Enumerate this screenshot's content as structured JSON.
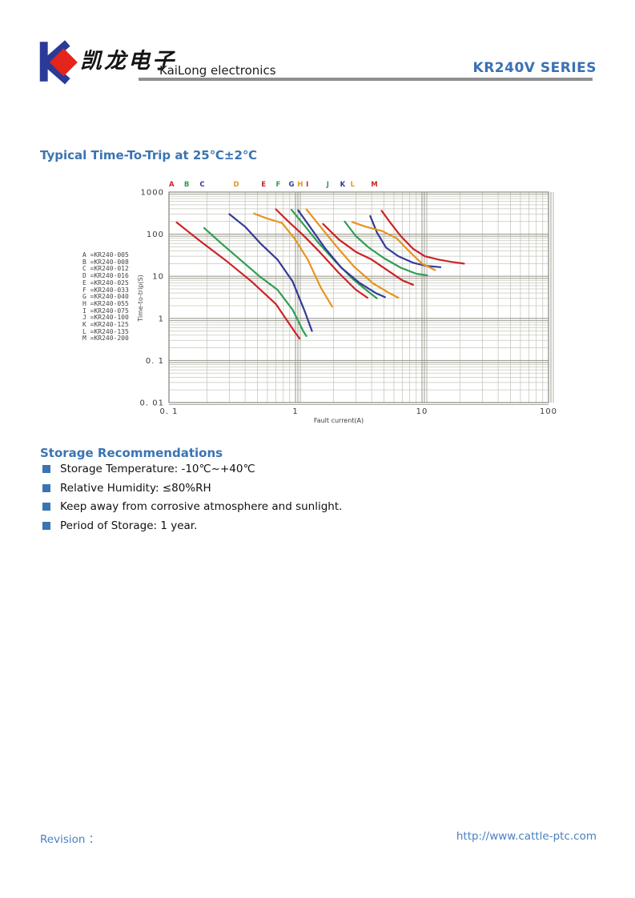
{
  "header": {
    "logo_chinese": "凯龙电子",
    "logo_english": "KaiLong electronics",
    "series": "KR240V SERIES"
  },
  "section_title": "Typical Time-To-Trip at 25℃±2℃",
  "chart_data": {
    "type": "line",
    "title": "Typical Time-To-Trip at 25℃±2℃",
    "xlabel": "Fault current(A)",
    "ylabel": "Time-to-trip(S)",
    "x_scale": "log",
    "y_scale": "log",
    "xlim": [
      0.1,
      100
    ],
    "ylim": [
      0.01,
      1000
    ],
    "grid": true,
    "x_ticks": [
      {
        "label": "0. 1",
        "value": 0.1
      },
      {
        "label": "1",
        "value": 1
      },
      {
        "label": "10",
        "value": 10
      },
      {
        "label": "100",
        "value": 100
      }
    ],
    "y_ticks": [
      {
        "label": "1000",
        "value": 1000
      },
      {
        "label": "100",
        "value": 100
      },
      {
        "label": "10",
        "value": 10
      },
      {
        "label": "1",
        "value": 1
      },
      {
        "label": "0. 1",
        "value": 0.1
      },
      {
        "label": "0. 01",
        "value": 0.01
      }
    ],
    "top_labels": [
      {
        "letter": "A",
        "x": 0.105
      },
      {
        "letter": "B",
        "x": 0.138
      },
      {
        "letter": "C",
        "x": 0.183
      },
      {
        "letter": "D",
        "x": 0.34
      },
      {
        "letter": "E",
        "x": 0.56
      },
      {
        "letter": "F",
        "x": 0.73
      },
      {
        "letter": "G",
        "x": 0.93
      },
      {
        "letter": "H",
        "x": 1.09
      },
      {
        "letter": "I",
        "x": 1.24
      },
      {
        "letter": "J",
        "x": 1.8
      },
      {
        "letter": "K",
        "x": 2.36
      },
      {
        "letter": "L",
        "x": 2.83
      },
      {
        "letter": "M",
        "x": 4.2
      }
    ],
    "series": [
      {
        "name": "A",
        "model": "KR240-005",
        "color": "#cc2328",
        "points": [
          [
            0.115,
            190
          ],
          [
            0.17,
            75
          ],
          [
            0.28,
            24
          ],
          [
            0.45,
            7.5
          ],
          [
            0.7,
            2.2
          ],
          [
            1.0,
            0.45
          ],
          [
            1.08,
            0.33
          ]
        ]
      },
      {
        "name": "B",
        "model": "KR240-008",
        "color": "#2f9e53",
        "points": [
          [
            0.19,
            140
          ],
          [
            0.26,
            60
          ],
          [
            0.37,
            24
          ],
          [
            0.52,
            10
          ],
          [
            0.72,
            4.8
          ],
          [
            0.95,
            1.6
          ],
          [
            1.15,
            0.5
          ],
          [
            1.22,
            0.38
          ]
        ]
      },
      {
        "name": "C",
        "model": "KR240-012",
        "color": "#333b96",
        "points": [
          [
            0.3,
            300
          ],
          [
            0.4,
            150
          ],
          [
            0.53,
            60
          ],
          [
            0.72,
            25
          ],
          [
            0.95,
            7.5
          ],
          [
            1.18,
            1.5
          ],
          [
            1.35,
            0.5
          ]
        ]
      },
      {
        "name": "D",
        "model": "KR240-016",
        "color": "#e6951e",
        "points": [
          [
            0.47,
            310
          ],
          [
            0.6,
            235
          ],
          [
            0.78,
            185
          ],
          [
            0.98,
            80
          ],
          [
            1.25,
            25
          ],
          [
            1.58,
            5.5
          ],
          [
            1.95,
            1.9
          ]
        ]
      },
      {
        "name": "E",
        "model": "KR240-025",
        "color": "#cc2328",
        "points": [
          [
            0.7,
            390
          ],
          [
            0.88,
            200
          ],
          [
            1.15,
            95
          ],
          [
            1.55,
            38
          ],
          [
            2.2,
            12
          ],
          [
            3.0,
            4.8
          ],
          [
            3.7,
            3.1
          ]
        ]
      },
      {
        "name": "F",
        "model": "KR240-033",
        "color": "#2f9e53",
        "points": [
          [
            0.93,
            380
          ],
          [
            1.15,
            175
          ],
          [
            1.5,
            65
          ],
          [
            2.05,
            23
          ],
          [
            2.85,
            8.5
          ],
          [
            3.8,
            4.2
          ],
          [
            4.4,
            3.0
          ]
        ]
      },
      {
        "name": "G",
        "model": "KR240-040",
        "color": "#333b96",
        "points": [
          [
            1.05,
            370
          ],
          [
            1.3,
            150
          ],
          [
            1.7,
            48
          ],
          [
            2.3,
            16
          ],
          [
            3.2,
            7
          ],
          [
            4.3,
            4
          ],
          [
            5.1,
            3.2
          ]
        ]
      },
      {
        "name": "H",
        "model": "KR240-055",
        "color": "#e6951e",
        "points": [
          [
            1.22,
            390
          ],
          [
            1.55,
            160
          ],
          [
            2.1,
            52
          ],
          [
            2.9,
            17
          ],
          [
            4.1,
            6.8
          ],
          [
            5.5,
            4
          ],
          [
            6.5,
            3.1
          ]
        ]
      },
      {
        "name": "I",
        "model": "KR240-075",
        "color": "#cc2328",
        "points": [
          [
            1.65,
            175
          ],
          [
            2.2,
            75
          ],
          [
            3.0,
            38
          ],
          [
            4.0,
            25
          ],
          [
            5.5,
            13
          ],
          [
            7.0,
            8
          ],
          [
            8.5,
            6.3
          ]
        ]
      },
      {
        "name": "J",
        "model": "KR240-100",
        "color": "#2f9e53",
        "points": [
          [
            2.45,
            200
          ],
          [
            3.0,
            90
          ],
          [
            3.8,
            48
          ],
          [
            5.0,
            27
          ],
          [
            6.8,
            16
          ],
          [
            9.0,
            11.5
          ],
          [
            11.0,
            10.5
          ]
        ]
      },
      {
        "name": "K",
        "model": "KR240-125",
        "color": "#333b96",
        "points": [
          [
            3.9,
            270
          ],
          [
            4.4,
            110
          ],
          [
            5.2,
            48
          ],
          [
            6.5,
            30
          ],
          [
            8.5,
            21
          ],
          [
            11,
            17.5
          ],
          [
            14,
            16.5
          ]
        ]
      },
      {
        "name": "L",
        "model": "KR240-135",
        "color": "#e6951e",
        "points": [
          [
            2.8,
            195
          ],
          [
            3.6,
            150
          ],
          [
            4.8,
            120
          ],
          [
            6.3,
            80
          ],
          [
            8.0,
            38
          ],
          [
            10,
            20
          ],
          [
            12.7,
            14
          ]
        ]
      },
      {
        "name": "M",
        "model": "KR240-200",
        "color": "#cc2328",
        "points": [
          [
            4.8,
            360
          ],
          [
            5.6,
            190
          ],
          [
            6.8,
            90
          ],
          [
            8.5,
            45
          ],
          [
            10.5,
            30
          ],
          [
            13.5,
            25
          ],
          [
            17,
            22
          ],
          [
            21.5,
            20
          ]
        ]
      }
    ]
  },
  "storage": {
    "title": "Storage Recommendations",
    "items": [
      "Storage Temperature: -10℃~+40℃",
      "Relative Humidity: ≤80%RH",
      "Keep away from corrosive atmosphere and sunlight.",
      "Period of Storage: 1 year."
    ]
  },
  "footer": {
    "revision": "Revision ：",
    "url": "http://www.cattle-ptc.com"
  },
  "colors": {
    "heading_blue": "#3b74b2",
    "footer_blue": "#4b7fc0",
    "logo_blue": "#2b3a96",
    "logo_red": "#e3251c",
    "grid_minor": "#c6c6bc",
    "grid_major": "#9e9e94"
  }
}
